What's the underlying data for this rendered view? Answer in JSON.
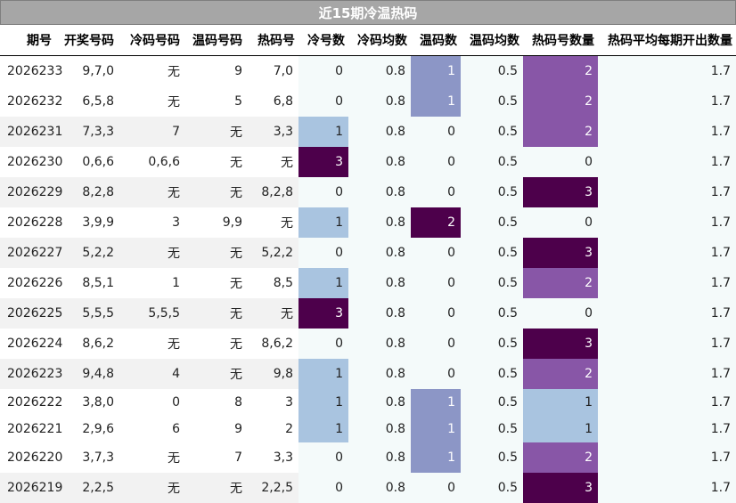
{
  "title": "近15期冷温热码",
  "headers": [
    "期号",
    "开奖号码",
    "冷码号码",
    "温码号码",
    "热码号",
    "冷号数",
    "冷码均数",
    "温码数",
    "温码均数",
    "热码号数量",
    "热码平均每期开出数量"
  ],
  "colors": {
    "light_blue": "#a9c4e0",
    "slate_blue": "#8c96c6",
    "medium_purple": "#8856a7",
    "dark_purple": "#4d004b",
    "zebra_gray": "#f2f2f2",
    "pale_area": "#f4fafa"
  },
  "rows": [
    {
      "period": "2026233",
      "draw": "9,7,0",
      "cold": "无",
      "warm": "9",
      "hot": "7,0",
      "cold_count": "0",
      "cold_avg": "0.8",
      "warm_count": "1",
      "warm_avg": "0.5",
      "hot_count": "2",
      "hot_avg": "1.7"
    },
    {
      "period": "2026232",
      "draw": "6,5,8",
      "cold": "无",
      "warm": "5",
      "hot": "6,8",
      "cold_count": "0",
      "cold_avg": "0.8",
      "warm_count": "1",
      "warm_avg": "0.5",
      "hot_count": "2",
      "hot_avg": "1.7"
    },
    {
      "period": "2026231",
      "draw": "7,3,3",
      "cold": "7",
      "warm": "无",
      "hot": "3,3",
      "cold_count": "1",
      "cold_avg": "0.8",
      "warm_count": "0",
      "warm_avg": "0.5",
      "hot_count": "2",
      "hot_avg": "1.7"
    },
    {
      "period": "2026230",
      "draw": "0,6,6",
      "cold": "0,6,6",
      "warm": "无",
      "hot": "无",
      "cold_count": "3",
      "cold_avg": "0.8",
      "warm_count": "0",
      "warm_avg": "0.5",
      "hot_count": "0",
      "hot_avg": "1.7"
    },
    {
      "period": "2026229",
      "draw": "8,2,8",
      "cold": "无",
      "warm": "无",
      "hot": "8,2,8",
      "cold_count": "0",
      "cold_avg": "0.8",
      "warm_count": "0",
      "warm_avg": "0.5",
      "hot_count": "3",
      "hot_avg": "1.7"
    },
    {
      "period": "2026228",
      "draw": "3,9,9",
      "cold": "3",
      "warm": "9,9",
      "hot": "无",
      "cold_count": "1",
      "cold_avg": "0.8",
      "warm_count": "2",
      "warm_avg": "0.5",
      "hot_count": "0",
      "hot_avg": "1.7"
    },
    {
      "period": "2026227",
      "draw": "5,2,2",
      "cold": "无",
      "warm": "无",
      "hot": "5,2,2",
      "cold_count": "0",
      "cold_avg": "0.8",
      "warm_count": "0",
      "warm_avg": "0.5",
      "hot_count": "3",
      "hot_avg": "1.7"
    },
    {
      "period": "2026226",
      "draw": "8,5,1",
      "cold": "1",
      "warm": "无",
      "hot": "8,5",
      "cold_count": "1",
      "cold_avg": "0.8",
      "warm_count": "0",
      "warm_avg": "0.5",
      "hot_count": "2",
      "hot_avg": "1.7"
    },
    {
      "period": "2026225",
      "draw": "5,5,5",
      "cold": "5,5,5",
      "warm": "无",
      "hot": "无",
      "cold_count": "3",
      "cold_avg": "0.8",
      "warm_count": "0",
      "warm_avg": "0.5",
      "hot_count": "0",
      "hot_avg": "1.7"
    },
    {
      "period": "2026224",
      "draw": "8,6,2",
      "cold": "无",
      "warm": "无",
      "hot": "8,6,2",
      "cold_count": "0",
      "cold_avg": "0.8",
      "warm_count": "0",
      "warm_avg": "0.5",
      "hot_count": "3",
      "hot_avg": "1.7"
    },
    {
      "period": "2026223",
      "draw": "9,4,8",
      "cold": "4",
      "warm": "无",
      "hot": "9,8",
      "cold_count": "1",
      "cold_avg": "0.8",
      "warm_count": "0",
      "warm_avg": "0.5",
      "hot_count": "2",
      "hot_avg": "1.7"
    },
    {
      "period": "2026222",
      "draw": "3,8,0",
      "cold": "0",
      "warm": "8",
      "hot": "3",
      "cold_count": "1",
      "cold_avg": "0.8",
      "warm_count": "1",
      "warm_avg": "0.5",
      "hot_count": "1",
      "hot_avg": "1.7"
    },
    {
      "period": "2026221",
      "draw": "2,9,6",
      "cold": "6",
      "warm": "9",
      "hot": "2",
      "cold_count": "1",
      "cold_avg": "0.8",
      "warm_count": "1",
      "warm_avg": "0.5",
      "hot_count": "1",
      "hot_avg": "1.7"
    },
    {
      "period": "2026220",
      "draw": "3,7,3",
      "cold": "无",
      "warm": "7",
      "hot": "3,3",
      "cold_count": "0",
      "cold_avg": "0.8",
      "warm_count": "1",
      "warm_avg": "0.5",
      "hot_count": "2",
      "hot_avg": "1.7"
    },
    {
      "period": "2026219",
      "draw": "2,2,5",
      "cold": "无",
      "warm": "无",
      "hot": "2,2,5",
      "cold_count": "0",
      "cold_avg": "0.8",
      "warm_count": "0",
      "warm_avg": "0.5",
      "hot_count": "3",
      "hot_avg": "1.7"
    }
  ]
}
